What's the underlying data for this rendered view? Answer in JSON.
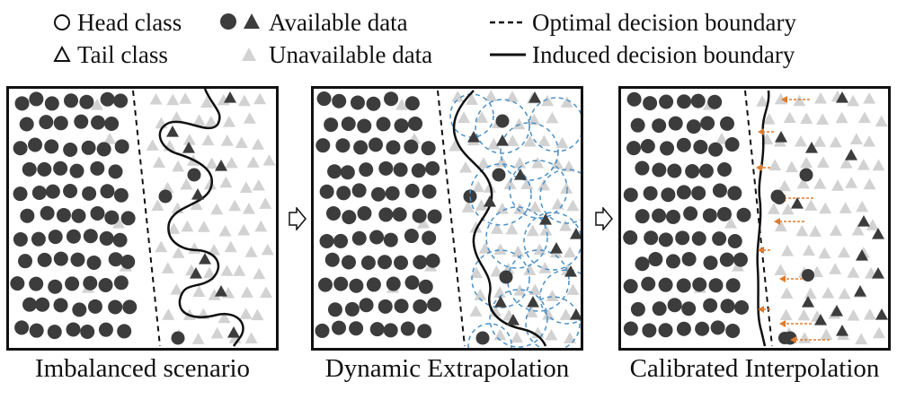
{
  "legend": {
    "head_class": "Head class",
    "tail_class": "Tail class",
    "available_data": "Available data",
    "unavailable_data": "Unavailable data",
    "optimal_boundary": "Optimal decision boundary",
    "induced_boundary": "Induced decision boundary"
  },
  "panels": [
    {
      "caption": "Imbalanced scenario"
    },
    {
      "caption": "Dynamic Extrapolation"
    },
    {
      "caption": "Calibrated Interpolation"
    }
  ],
  "colors": {
    "available": "#3c3c3c",
    "unavailable": "#d2d2d2",
    "boundary": "#111111",
    "extrapolation_circles": "#4a90c8",
    "calibration_arrows": "#e07a2a"
  },
  "icons": [
    "circle-outline-icon",
    "triangle-outline-icon",
    "filled-circle-icon",
    "filled-triangle-icon",
    "gray-triangle-icon",
    "dashed-line-icon",
    "solid-line-icon",
    "right-arrow-icon"
  ]
}
